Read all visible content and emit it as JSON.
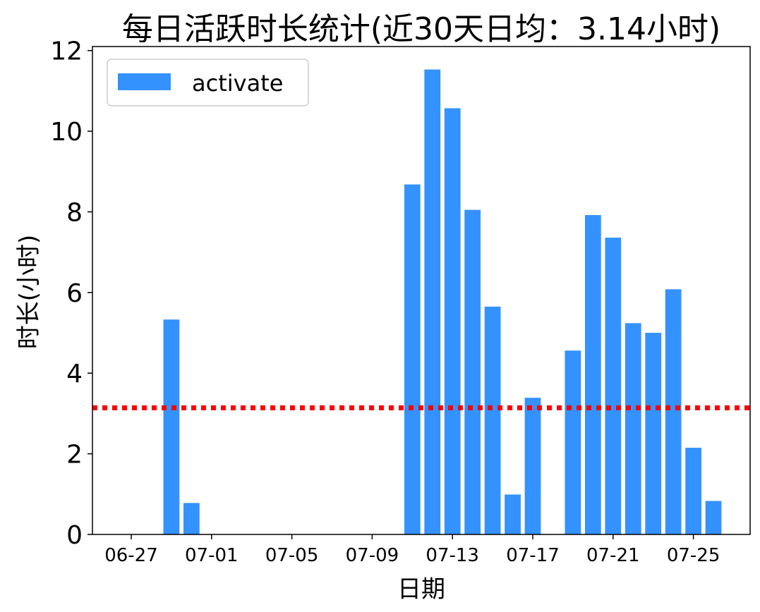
{
  "chart_data": {
    "type": "bar",
    "title": "每日活跃时长统计(近30天日均：3.14小时)",
    "xlabel": "日期",
    "ylabel": "时长(小时)",
    "ylim": [
      0,
      12.1
    ],
    "yticks": [
      0,
      2,
      4,
      6,
      8,
      10,
      12
    ],
    "xtick_labels": [
      "06-27",
      "07-01",
      "07-05",
      "07-09",
      "07-13",
      "07-17",
      "07-21",
      "07-25"
    ],
    "legend": {
      "label": "activate",
      "position": "top-left"
    },
    "bar_color": "#3492FF",
    "average_line": {
      "value": 3.14,
      "color": "#FF0000",
      "style": "dotted"
    },
    "categories": [
      "06-27",
      "06-28",
      "06-29",
      "06-30",
      "07-01",
      "07-02",
      "07-03",
      "07-04",
      "07-05",
      "07-06",
      "07-07",
      "07-08",
      "07-09",
      "07-10",
      "07-11",
      "07-12",
      "07-13",
      "07-14",
      "07-15",
      "07-16",
      "07-17",
      "07-18",
      "07-19",
      "07-20",
      "07-21",
      "07-22",
      "07-23",
      "07-24",
      "07-25",
      "07-26"
    ],
    "values": [
      0,
      0,
      5.33,
      0.78,
      0,
      0,
      0,
      0,
      0,
      0,
      0,
      0,
      0,
      0,
      8.68,
      11.53,
      10.57,
      8.05,
      5.65,
      0.99,
      3.39,
      0,
      4.56,
      7.92,
      7.36,
      5.24,
      5.0,
      6.08,
      2.15,
      0.83
    ]
  }
}
